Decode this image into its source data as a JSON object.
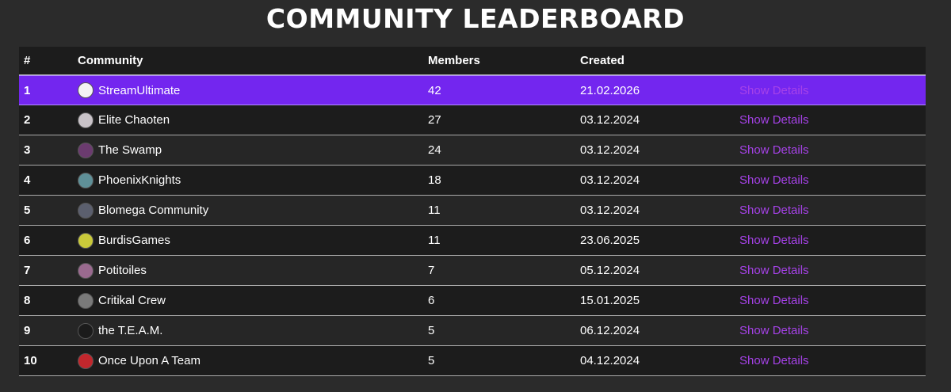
{
  "title": "COMMUNITY LEADERBOARD",
  "columns": {
    "rank": "#",
    "community": "Community",
    "members": "Members",
    "created": "Created"
  },
  "details_label": "Show Details",
  "rows": [
    {
      "rank": "1",
      "name": "StreamUltimate",
      "members": "42",
      "created": "21.02.2026",
      "avatar_color": "#f4f4f4"
    },
    {
      "rank": "2",
      "name": "Elite Chaoten",
      "members": "27",
      "created": "03.12.2024",
      "avatar_color": "#c9c3c8"
    },
    {
      "rank": "3",
      "name": "The Swamp",
      "members": "24",
      "created": "03.12.2024",
      "avatar_color": "#6b3b6f"
    },
    {
      "rank": "4",
      "name": "PhoenixKnights",
      "members": "18",
      "created": "03.12.2024",
      "avatar_color": "#5f9098"
    },
    {
      "rank": "5",
      "name": "Blomega Community",
      "members": "11",
      "created": "03.12.2024",
      "avatar_color": "#5b5f6e"
    },
    {
      "rank": "6",
      "name": "BurdisGames",
      "members": "11",
      "created": "23.06.2025",
      "avatar_color": "#c9c93a"
    },
    {
      "rank": "7",
      "name": "Potitoiles",
      "members": "7",
      "created": "05.12.2024",
      "avatar_color": "#9a6a8f"
    },
    {
      "rank": "8",
      "name": "Critikal Crew",
      "members": "6",
      "created": "15.01.2025",
      "avatar_color": "#7a7a7a"
    },
    {
      "rank": "9",
      "name": "the T.E.A.M.",
      "members": "5",
      "created": "06.12.2024",
      "avatar_color": "#1b1b1b"
    },
    {
      "rank": "10",
      "name": "Once Upon A Team",
      "members": "5",
      "created": "04.12.2024",
      "avatar_color": "#c2272d"
    }
  ],
  "highlight_color": "#7326ef",
  "link_color": "#a642e8"
}
